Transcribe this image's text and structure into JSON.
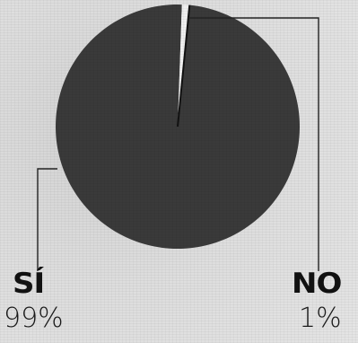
{
  "chart_data": {
    "type": "pie",
    "categories": [
      "SÍ",
      "NO"
    ],
    "values": [
      99,
      1
    ],
    "value_labels": [
      "99%",
      "1%"
    ],
    "colors": [
      "#3a3a3a",
      "#f0f0f0"
    ],
    "title": "",
    "start_angle_deg": 0,
    "direction": "counterclockwise"
  },
  "labels": {
    "si": "SÍ",
    "si_pct": "99%",
    "no": "NO",
    "no_pct": "1%"
  }
}
